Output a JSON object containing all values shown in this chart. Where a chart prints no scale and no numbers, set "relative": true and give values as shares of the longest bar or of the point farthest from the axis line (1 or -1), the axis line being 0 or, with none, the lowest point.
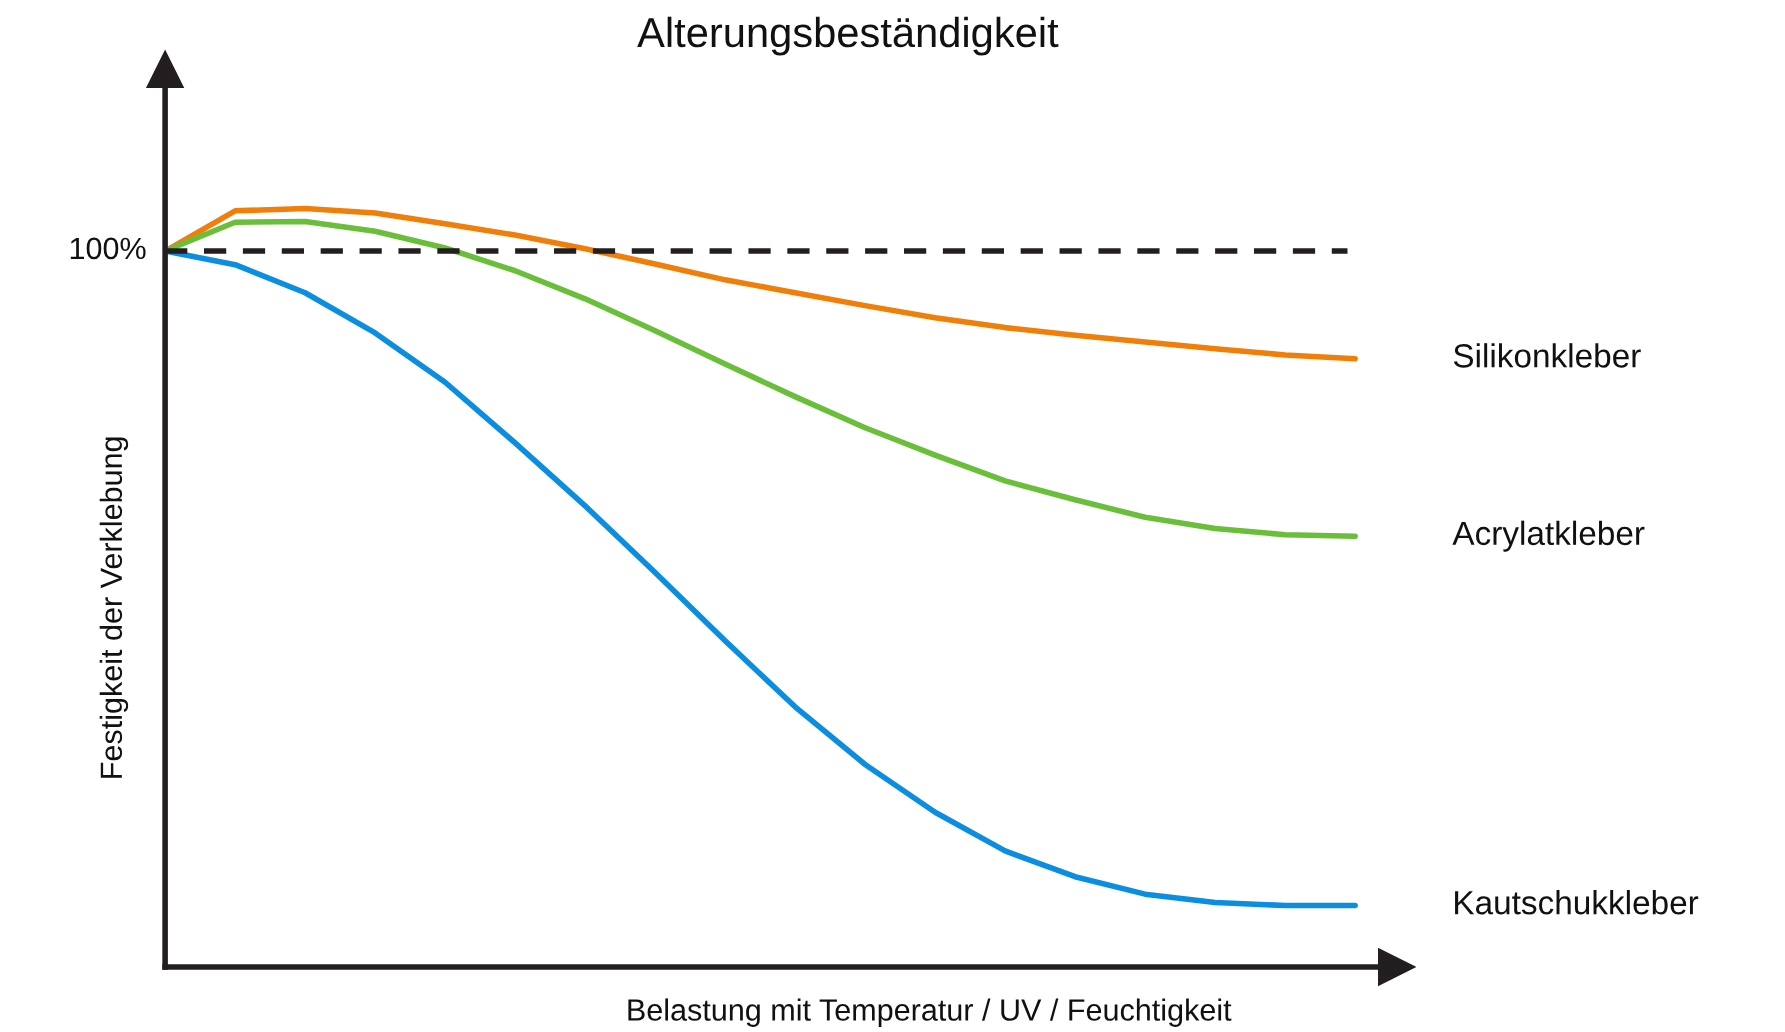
{
  "chart_data": {
    "type": "line",
    "title": "Alterungsbeständigkeit",
    "xlabel": "Belastung mit Temperatur / UV / Feuchtigkeit",
    "ylabel": "Festigkeit der Verklebung",
    "relative": true,
    "annotations": [
      "100%"
    ],
    "categories": [
      null,
      null,
      null,
      null,
      null,
      null,
      null,
      null,
      null,
      null,
      null,
      null,
      null,
      null,
      null,
      null,
      null,
      null
    ],
    "series": [
      {
        "name": "Silikonkleber",
        "color": "#f07f09",
        "values": [
          0.944,
          0.997,
          1.0,
          0.994,
          0.98,
          0.965,
          0.947,
          0.927,
          0.906,
          0.889,
          0.872,
          0.856,
          0.843,
          0.833,
          0.824,
          0.815,
          0.807,
          0.802
        ]
      },
      {
        "name": "Acrylatkleber",
        "color": "#6abf3a",
        "values": [
          0.944,
          0.982,
          0.983,
          0.97,
          0.948,
          0.918,
          0.881,
          0.839,
          0.795,
          0.752,
          0.711,
          0.675,
          0.641,
          0.616,
          0.593,
          0.578,
          0.57,
          0.568
        ]
      },
      {
        "name": "Kautschukkleber",
        "color": "#0b8ee0",
        "values": [
          0.944,
          0.926,
          0.889,
          0.836,
          0.771,
          0.691,
          0.608,
          0.52,
          0.43,
          0.343,
          0.267,
          0.204,
          0.153,
          0.119,
          0.096,
          0.085,
          0.081,
          0.081
        ]
      }
    ],
    "ref_lines": [
      {
        "axis": "y",
        "value": 0.944,
        "color": "#231f20",
        "line_style": "dashed"
      }
    ]
  }
}
